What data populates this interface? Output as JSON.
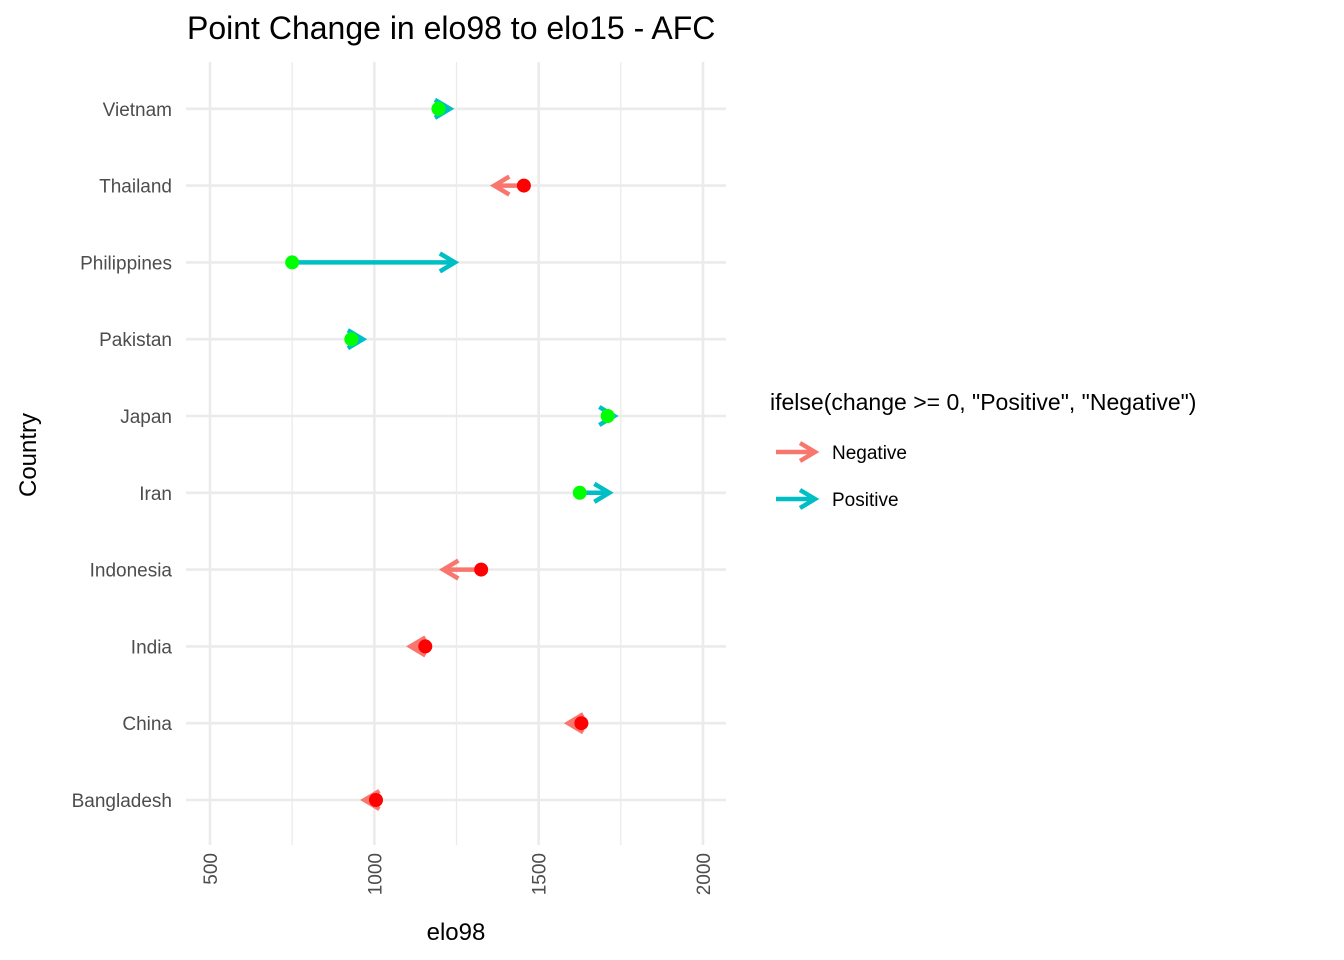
{
  "chart_data": {
    "type": "arrow-dot",
    "title": "Point Change in elo98 to elo15 - AFC",
    "xlabel": "elo98",
    "ylabel": "Country",
    "xlim": [
      500,
      2000
    ],
    "x_ticks": [
      500,
      1000,
      1500,
      2000
    ],
    "x_minor_ticks": [
      750,
      1250,
      1750
    ],
    "categories": [
      "Bangladesh",
      "China",
      "India",
      "Indonesia",
      "Iran",
      "Japan",
      "Pakistan",
      "Philippines",
      "Thailand",
      "Vietnam"
    ],
    "series": [
      {
        "name": "elo98",
        "values": [
          1005,
          1630,
          1155,
          1325,
          1625,
          1710,
          930,
          750,
          1455,
          1195
        ]
      },
      {
        "name": "elo15",
        "values": [
          970,
          1590,
          1110,
          1210,
          1715,
          1730,
          965,
          1245,
          1365,
          1230
        ]
      }
    ],
    "legend": {
      "title": "ifelse(change >= 0, \"Positive\", \"Negative\")",
      "entries": [
        "Negative",
        "Positive"
      ],
      "position": "right"
    },
    "grid": true,
    "colors": {
      "negative_arrow": "#F8766D",
      "positive_arrow": "#00BFC4",
      "negative_point": "#FF0000",
      "positive_point": "#00FF00"
    }
  }
}
